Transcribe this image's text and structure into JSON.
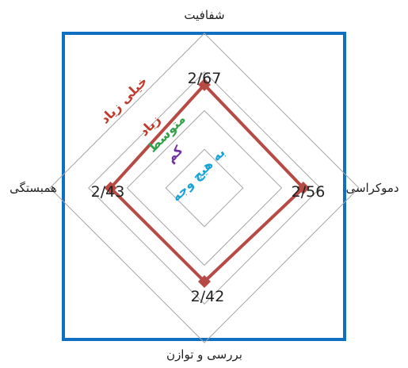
{
  "chart_data": {
    "type": "radar",
    "axes": [
      {
        "name": "شفافیت",
        "value": 2.67,
        "label": "2/67"
      },
      {
        "name": "دموکراسی",
        "value": 2.56,
        "label": "2/56"
      },
      {
        "name": "بررسی و توازن",
        "value": 2.42,
        "label": "2/42"
      },
      {
        "name": "همبستگی",
        "value": 2.43,
        "label": "2/43"
      }
    ],
    "range": [
      0,
      4
    ],
    "levels": [
      {
        "name": "به هیچ وجه",
        "value": 1,
        "color": "#1aa3d9"
      },
      {
        "name": "کم",
        "value": 2,
        "color": "#7030a0"
      },
      {
        "name": "متوسط",
        "value": 3,
        "color": "#33a04a"
      },
      {
        "name": "زیاد",
        "value": 4,
        "color": "#c0392b"
      },
      {
        "name": "خیلی زیاد",
        "value": 5,
        "color": "#c0392b"
      }
    ],
    "grid": true,
    "series_color": "#b84a45",
    "border_color": "#0f6fc0"
  }
}
